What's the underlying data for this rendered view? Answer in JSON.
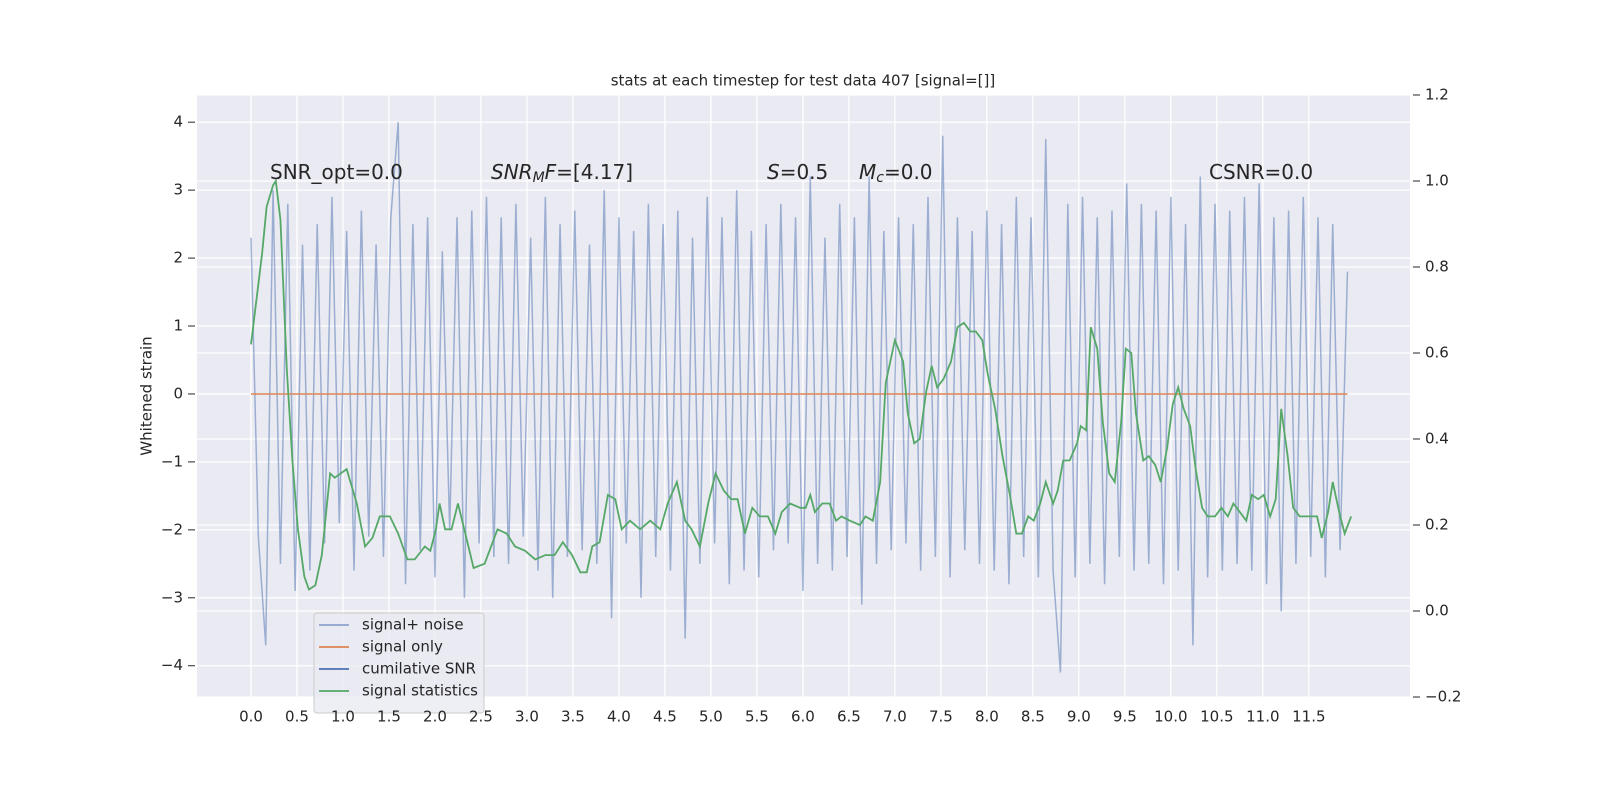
{
  "chart_data": {
    "type": "line",
    "title": "stats at each timestep for test data 407 [signal=[]]",
    "y_label": "Whitened strain",
    "xlim": [
      -0.587,
      12.6
    ],
    "ylim": [
      -4.46,
      4.4
    ],
    "y2lim": [
      -0.2,
      1.2
    ],
    "xticks": [
      {
        "value": 0,
        "label": "0.0"
      },
      0.5,
      {
        "value": 1,
        "label": "1.0"
      },
      1.5,
      {
        "value": 2,
        "label": "2.0"
      },
      2.5,
      {
        "value": 3,
        "label": "3.0"
      },
      3.5,
      {
        "value": 4,
        "label": "4.0"
      },
      4.5,
      {
        "value": 5,
        "label": "5.0"
      },
      5.5,
      {
        "value": 6,
        "label": "6.0"
      },
      6.5,
      {
        "value": 7,
        "label": "7.0"
      },
      7.5,
      {
        "value": 8,
        "label": "8.0"
      },
      8.5,
      {
        "value": 9,
        "label": "9.0"
      },
      9.5,
      {
        "value": 10,
        "label": "10.0"
      },
      10.5,
      {
        "value": 11,
        "label": "11.0"
      },
      11.5
    ],
    "yticks": [
      {
        "value": -4,
        "label": "−4"
      },
      {
        "value": -3,
        "label": "−3"
      },
      {
        "value": -2,
        "label": "−2"
      },
      {
        "value": -1,
        "label": "−1"
      },
      0,
      1,
      2,
      3,
      4
    ],
    "y2ticks": [
      {
        "value": -0.2,
        "label": "−0.2"
      },
      {
        "value": 0,
        "label": "0.0"
      },
      0.2,
      0.4,
      0.6,
      0.8,
      {
        "value": 1,
        "label": "1.0"
      },
      1.2
    ],
    "grid": true,
    "legend": "lower left",
    "annotations": [
      {
        "parts": [
          {
            "text": "SNR_opt=0.0"
          }
        ]
      },
      {
        "parts": [
          {
            "text": "SNR",
            "italic": true
          },
          {
            "text": "M",
            "italic": true,
            "sub": true
          },
          {
            "text": "F",
            "italic": true
          },
          {
            "text": "=[4.17]"
          }
        ]
      },
      {
        "parts": [
          {
            "text": "S",
            "italic": true
          },
          {
            "text": "=0.5"
          }
        ]
      },
      {
        "parts": [
          {
            "text": "M",
            "italic": true
          },
          {
            "text": "c",
            "italic": true,
            "sub": true
          },
          {
            "text": "=0.0"
          }
        ]
      },
      {
        "parts": [
          {
            "text": "CSNR=0.0"
          }
        ]
      }
    ],
    "series": [
      {
        "name": "signal+ noise",
        "color": "#4c72b0",
        "opacity": 0.5,
        "x": [
          0,
          0.08,
          0.16,
          0.24,
          0.32,
          0.4,
          0.48,
          0.56,
          0.64,
          0.72,
          0.8,
          0.88,
          0.96,
          1.04,
          1.12,
          1.2,
          1.28,
          1.36,
          1.44,
          1.52,
          1.6,
          1.68,
          1.76,
          1.84,
          1.92,
          2,
          2.08,
          2.16,
          2.24,
          2.32,
          2.4,
          2.48,
          2.56,
          2.64,
          2.72,
          2.8,
          2.88,
          2.96,
          3.04,
          3.12,
          3.2,
          3.28,
          3.36,
          3.44,
          3.52,
          3.6,
          3.68,
          3.76,
          3.84,
          3.92,
          4,
          4.08,
          4.16,
          4.24,
          4.32,
          4.4,
          4.48,
          4.56,
          4.64,
          4.72,
          4.8,
          4.88,
          4.96,
          5.04,
          5.12,
          5.2,
          5.28,
          5.36,
          5.44,
          5.52,
          5.6,
          5.68,
          5.76,
          5.84,
          5.92,
          6,
          6.08,
          6.16,
          6.24,
          6.32,
          6.4,
          6.48,
          6.56,
          6.64,
          6.72,
          6.8,
          6.88,
          6.96,
          7.04,
          7.12,
          7.2,
          7.28,
          7.36,
          7.44,
          7.52,
          7.6,
          7.68,
          7.76,
          7.84,
          7.92,
          8,
          8.08,
          8.16,
          8.24,
          8.32,
          8.4,
          8.48,
          8.56,
          8.64,
          8.72,
          8.8,
          8.88,
          8.96,
          9.04,
          9.12,
          9.2,
          9.28,
          9.36,
          9.44,
          9.52,
          9.6,
          9.68,
          9.76,
          9.84,
          9.92,
          10,
          10.08,
          10.16,
          10.24,
          10.32,
          10.4,
          10.48,
          10.56,
          10.64,
          10.72,
          10.8,
          10.88,
          10.96,
          11.04,
          11.12,
          11.2,
          11.28,
          11.36,
          11.44,
          11.52,
          11.6,
          11.68,
          11.76,
          11.84,
          11.92
        ],
        "values": [
          2.3,
          -2.1,
          -3.7,
          3.0,
          -2.5,
          2.8,
          -2.9,
          2.2,
          -2.6,
          2.5,
          -2.2,
          2.9,
          -1.9,
          2.4,
          -2.6,
          2.7,
          -2.1,
          2.2,
          -2.4,
          2.6,
          4.0,
          -2.8,
          2.5,
          -2.3,
          2.6,
          -2.7,
          2.1,
          -2.0,
          2.6,
          -3.0,
          2.7,
          -2.2,
          2.9,
          -2.4,
          2.6,
          -2.5,
          2.8,
          -2.1,
          2.3,
          -2.6,
          2.9,
          -3.0,
          2.5,
          -2.4,
          2.7,
          -2.3,
          2.2,
          -2.5,
          3.0,
          -3.3,
          2.6,
          -2.2,
          2.4,
          -3.0,
          2.8,
          -2.4,
          2.5,
          -2.6,
          2.7,
          -3.6,
          2.3,
          -2.5,
          2.9,
          -2.2,
          2.6,
          -2.8,
          3.0,
          -2.6,
          2.4,
          -2.7,
          2.5,
          -2.3,
          2.8,
          -2.2,
          2.6,
          -2.9,
          3.2,
          -2.5,
          2.3,
          -2.6,
          2.8,
          -2.4,
          2.6,
          -3.1,
          3.2,
          -2.5,
          2.4,
          -2.3,
          2.6,
          -2.2,
          2.5,
          -2.6,
          2.9,
          -2.4,
          3.8,
          -2.7,
          2.6,
          -2.3,
          2.4,
          -2.5,
          2.7,
          -2.6,
          2.5,
          -2.8,
          2.9,
          -2.4,
          2.6,
          -2.7,
          3.75,
          -2.6,
          -4.1,
          2.8,
          -2.7,
          2.9,
          -2.5,
          2.6,
          -2.8,
          2.7,
          -2.4,
          3.1,
          -2.6,
          2.8,
          -2.5,
          2.7,
          -2.8,
          2.9,
          -2.6,
          2.5,
          -3.7,
          3.2,
          -2.7,
          2.8,
          -2.6,
          2.7,
          -2.5,
          2.9,
          -2.6,
          3.1,
          -2.8,
          2.6,
          -3.2,
          2.7,
          -2.5,
          2.9,
          -2.4,
          2.6,
          -2.7,
          2.5,
          -2.3,
          1.8
        ]
      },
      {
        "name": "signal only",
        "color": "#dd8452",
        "opacity": 1,
        "x": [
          0,
          11.92
        ],
        "values": [
          0,
          0
        ]
      },
      {
        "name": "cumilative SNR",
        "color": "#4c72b0",
        "opacity": 1,
        "x": [],
        "values": []
      },
      {
        "name": "signal statistics",
        "color": "#55a868",
        "opacity": 1,
        "axis": "y2",
        "x": [
          0,
          0.12,
          0.17,
          0.24,
          0.27,
          0.32,
          0.39,
          0.45,
          0.51,
          0.58,
          0.63,
          0.7,
          0.77,
          0.86,
          0.91,
          1.04,
          1.15,
          1.24,
          1.32,
          1.4,
          1.51,
          1.6,
          1.7,
          1.78,
          1.89,
          1.95,
          2.01,
          2.05,
          2.11,
          2.18,
          2.25,
          2.33,
          2.42,
          2.54,
          2.68,
          2.78,
          2.87,
          2.98,
          3.09,
          3.2,
          3.3,
          3.39,
          3.49,
          3.58,
          3.65,
          3.71,
          3.79,
          3.88,
          3.96,
          4.03,
          4.12,
          4.23,
          4.34,
          4.45,
          4.53,
          4.63,
          4.72,
          4.79,
          4.88,
          4.97,
          5.05,
          5.14,
          5.22,
          5.29,
          5.37,
          5.45,
          5.53,
          5.62,
          5.7,
          5.77,
          5.86,
          5.97,
          6.03,
          6.08,
          6.13,
          6.21,
          6.29,
          6.36,
          6.42,
          6.51,
          6.62,
          6.68,
          6.76,
          6.84,
          6.9,
          7.0,
          7.09,
          7.14,
          7.21,
          7.27,
          7.34,
          7.4,
          7.46,
          7.53,
          7.61,
          7.68,
          7.75,
          7.82,
          7.88,
          7.95,
          8.01,
          8.09,
          8.17,
          8.25,
          8.32,
          8.38,
          8.45,
          8.51,
          8.58,
          8.64,
          8.72,
          8.77,
          8.83,
          8.9,
          8.98,
          9.02,
          9.08,
          9.13,
          9.2,
          9.26,
          9.33,
          9.39,
          9.46,
          9.51,
          9.57,
          9.62,
          9.7,
          9.76,
          9.83,
          9.89,
          9.96,
          10.02,
          10.08,
          10.14,
          10.21,
          10.27,
          10.34,
          10.4,
          10.48,
          10.55,
          10.62,
          10.68,
          10.75,
          10.82,
          10.88,
          10.95,
          11.01,
          11.08,
          11.14,
          11.2,
          11.27,
          11.33,
          11.4,
          11.46,
          11.53,
          11.59,
          11.64,
          11.71,
          11.76,
          11.83,
          11.89,
          11.96
        ],
        "values": [
          0.62,
          0.83,
          0.94,
          0.99,
          1.0,
          0.91,
          0.56,
          0.35,
          0.19,
          0.08,
          0.05,
          0.06,
          0.13,
          0.32,
          0.31,
          0.33,
          0.25,
          0.15,
          0.17,
          0.22,
          0.22,
          0.18,
          0.12,
          0.12,
          0.15,
          0.14,
          0.19,
          0.25,
          0.19,
          0.19,
          0.25,
          0.18,
          0.1,
          0.11,
          0.19,
          0.18,
          0.15,
          0.14,
          0.12,
          0.13,
          0.13,
          0.16,
          0.13,
          0.09,
          0.09,
          0.15,
          0.16,
          0.27,
          0.26,
          0.19,
          0.21,
          0.19,
          0.21,
          0.19,
          0.25,
          0.3,
          0.21,
          0.19,
          0.15,
          0.25,
          0.32,
          0.28,
          0.26,
          0.26,
          0.18,
          0.24,
          0.22,
          0.22,
          0.18,
          0.23,
          0.25,
          0.24,
          0.24,
          0.27,
          0.23,
          0.25,
          0.25,
          0.21,
          0.22,
          0.21,
          0.2,
          0.22,
          0.21,
          0.3,
          0.53,
          0.63,
          0.58,
          0.46,
          0.39,
          0.4,
          0.51,
          0.57,
          0.52,
          0.54,
          0.58,
          0.66,
          0.67,
          0.65,
          0.65,
          0.63,
          0.55,
          0.47,
          0.36,
          0.27,
          0.18,
          0.18,
          0.22,
          0.21,
          0.25,
          0.3,
          0.25,
          0.28,
          0.35,
          0.35,
          0.39,
          0.43,
          0.42,
          0.66,
          0.61,
          0.44,
          0.32,
          0.3,
          0.44,
          0.61,
          0.6,
          0.46,
          0.35,
          0.36,
          0.34,
          0.3,
          0.38,
          0.48,
          0.52,
          0.47,
          0.43,
          0.33,
          0.24,
          0.22,
          0.22,
          0.24,
          0.22,
          0.25,
          0.23,
          0.21,
          0.27,
          0.26,
          0.27,
          0.22,
          0.26,
          0.47,
          0.36,
          0.24,
          0.22,
          0.22,
          0.22,
          0.22,
          0.17,
          0.23,
          0.3,
          0.23,
          0.18,
          0.22
        ]
      }
    ]
  }
}
